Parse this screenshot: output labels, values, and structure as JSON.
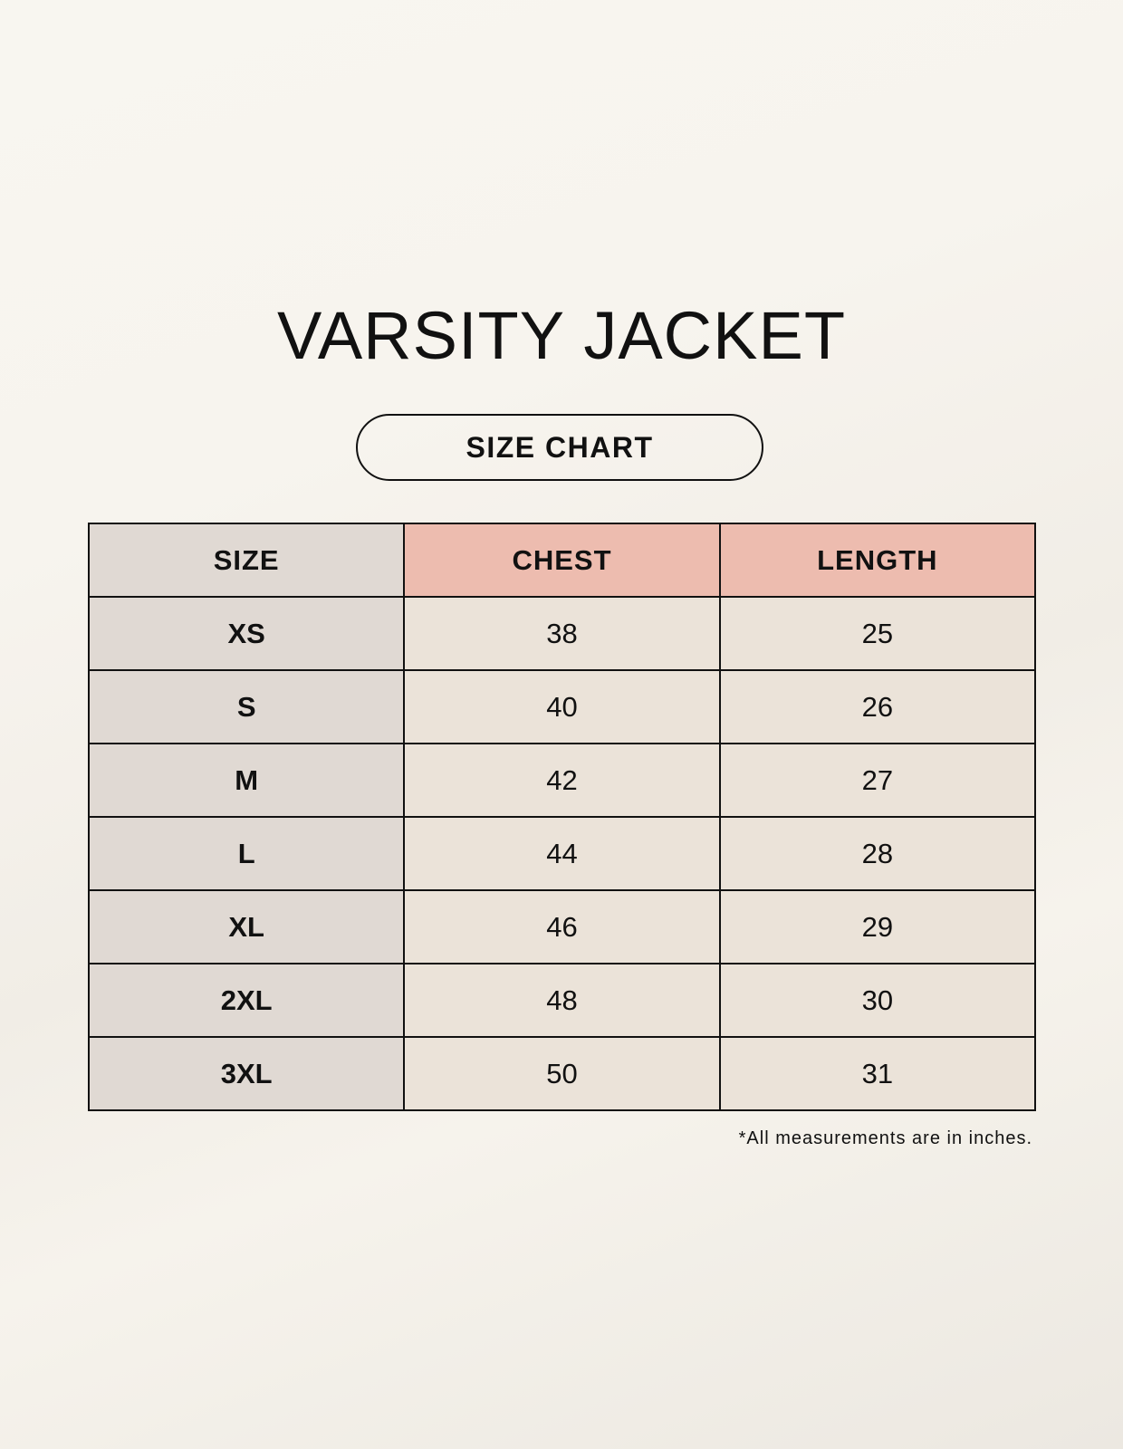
{
  "title": "VARSITY JACKET",
  "subtitle": "SIZE CHART",
  "table": {
    "headers": [
      "SIZE",
      "CHEST",
      "LENGTH"
    ],
    "rows": [
      [
        "XS",
        "38",
        "25"
      ],
      [
        "S",
        "40",
        "26"
      ],
      [
        "M",
        "42",
        "27"
      ],
      [
        "L",
        "44",
        "28"
      ],
      [
        "XL",
        "46",
        "29"
      ],
      [
        "2XL",
        "48",
        "30"
      ],
      [
        "3XL",
        "50",
        "31"
      ]
    ]
  },
  "footnote": "*All measurements are in inches.",
  "colors": {
    "size_column": "#e0d9d3",
    "header_accent": "#edbcaf",
    "value_cells": "#ebe3d9"
  }
}
